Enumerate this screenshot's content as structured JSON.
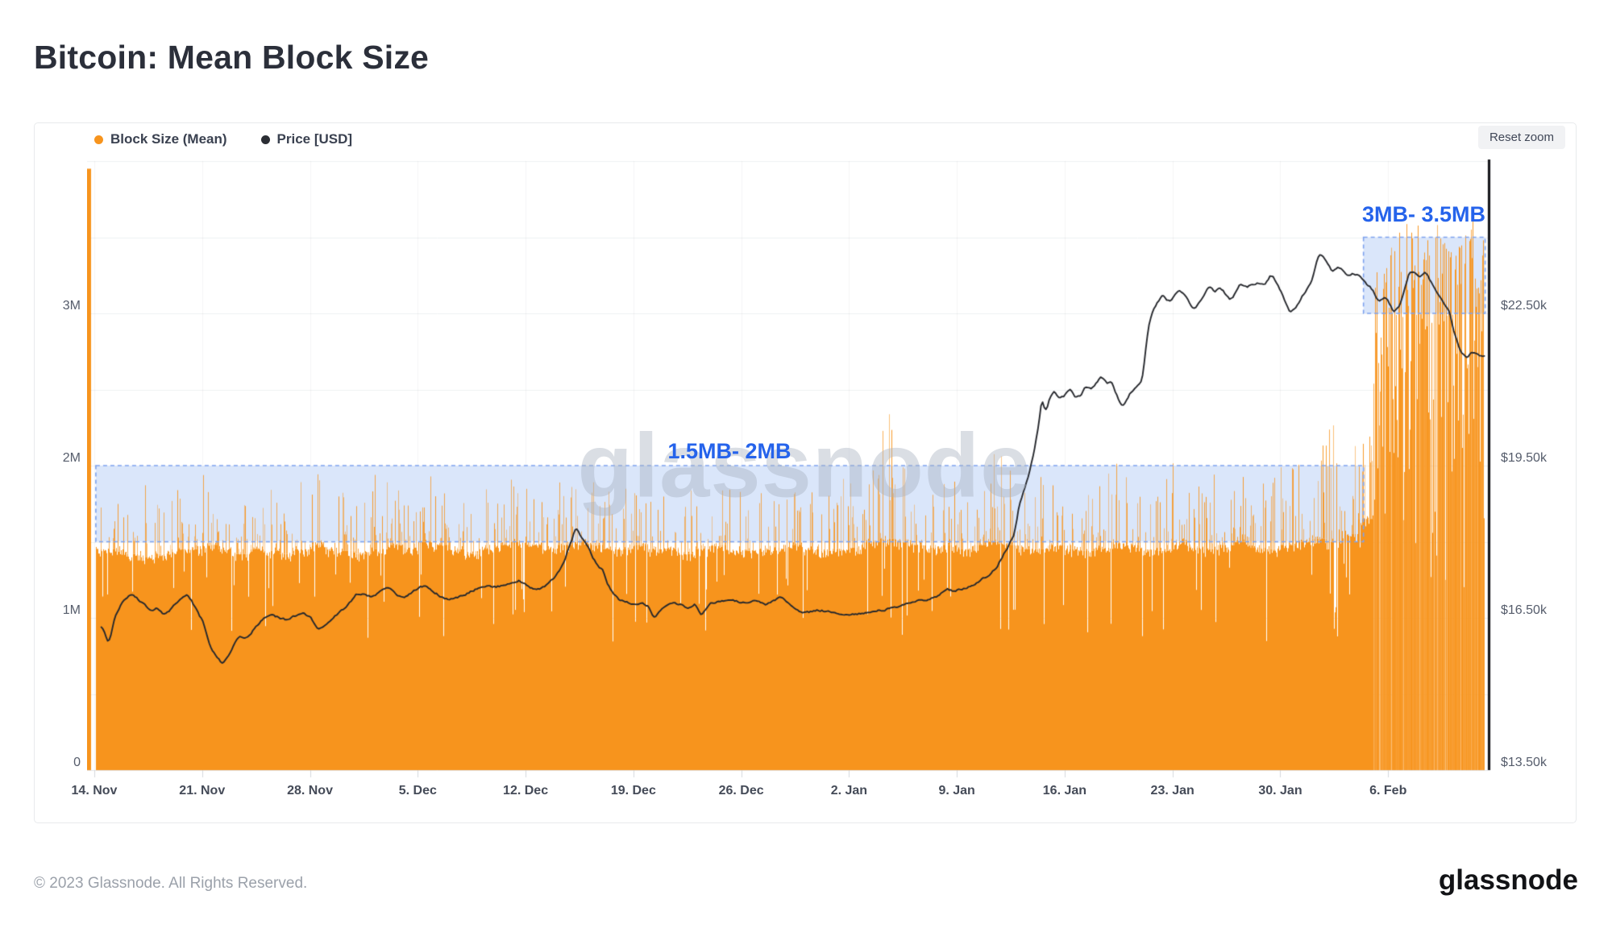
{
  "page": {
    "title": "Bitcoin: Mean Block Size"
  },
  "legend": {
    "items": [
      {
        "label": "Block Size (Mean)",
        "color": "#f7941d"
      },
      {
        "label": "Price [USD]",
        "color": "#2b2e34"
      }
    ]
  },
  "toolbar": {
    "reset_zoom_label": "Reset zoom"
  },
  "watermark": {
    "text": "glassnode"
  },
  "footer": {
    "copyright": "© 2023 Glassnode. All Rights Reserved.",
    "brand": "glassnode"
  },
  "chart_data": {
    "type": "mixed",
    "series_meta": [
      {
        "name": "Block Size (Mean)",
        "type": "bar",
        "axis": "left",
        "color": "#f7941d"
      },
      {
        "name": "Price [USD]",
        "type": "line",
        "axis": "right",
        "color": "#26282d"
      }
    ],
    "x_axis": {
      "tick_labels": [
        "14. Nov",
        "21. Nov",
        "28. Nov",
        "5. Dec",
        "12. Dec",
        "19. Dec",
        "26. Dec",
        "2. Jan",
        "9. Jan",
        "16. Jan",
        "23. Jan",
        "30. Jan",
        "6. Feb"
      ],
      "tick_days": [
        0,
        7,
        14,
        21,
        28,
        35,
        42,
        49,
        56,
        63,
        70,
        77,
        84
      ],
      "days_visible": [
        -0.45,
        90.3
      ]
    },
    "y_left": {
      "range": [
        0,
        4
      ],
      "gridline_step": 0.5,
      "ticks": [
        {
          "v": 0,
          "label": "0"
        },
        {
          "v": 1,
          "label": "1M"
        },
        {
          "v": 2,
          "label": "2M"
        },
        {
          "v": 3,
          "label": "3M"
        }
      ]
    },
    "y_right": {
      "range": [
        13.5,
        25.5
      ],
      "gridline_step": 1.5,
      "ticks": [
        {
          "v": 13.5,
          "label": "$13.50k"
        },
        {
          "v": 16.5,
          "label": "$16.50k"
        },
        {
          "v": 19.5,
          "label": "$19.50k"
        },
        {
          "v": 22.5,
          "label": "$22.50k"
        }
      ]
    },
    "annotations": [
      {
        "text": "1.5MB- 2MB",
        "band": {
          "from_day": 0.1,
          "to_day": 82.4,
          "from_mb": 1.5,
          "to_mb": 2.0
        }
      },
      {
        "text": "3MB- 3.5MB",
        "band": {
          "from_day": 82.4,
          "to_day": 90.3,
          "from_mb": 3.0,
          "to_mb": 3.5
        }
      }
    ],
    "price_usd_k": [
      [
        0.45,
        16.35
      ],
      [
        0.7,
        16.1
      ],
      [
        0.9,
        15.95
      ],
      [
        1.1,
        16.3
      ],
      [
        1.3,
        16.6
      ],
      [
        1.6,
        16.75
      ],
      [
        2,
        16.9
      ],
      [
        2.4,
        17
      ],
      [
        2.8,
        16.85
      ],
      [
        3.2,
        16.75
      ],
      [
        3.6,
        16.6
      ],
      [
        4,
        16.7
      ],
      [
        4.4,
        16.55
      ],
      [
        4.8,
        16.65
      ],
      [
        5.2,
        16.8
      ],
      [
        5.6,
        16.9
      ],
      [
        6,
        16.95
      ],
      [
        6.3,
        16.8
      ],
      [
        6.7,
        16.55
      ],
      [
        7,
        16.4
      ],
      [
        7.3,
        16.05
      ],
      [
        7.6,
        15.8
      ],
      [
        8,
        15.7
      ],
      [
        8.3,
        15.55
      ],
      [
        8.6,
        15.75
      ],
      [
        9,
        16
      ],
      [
        9.4,
        16.15
      ],
      [
        9.8,
        16.1
      ],
      [
        10.2,
        16.25
      ],
      [
        10.6,
        16.4
      ],
      [
        11,
        16.5
      ],
      [
        11.5,
        16.55
      ],
      [
        12,
        16.5
      ],
      [
        12.5,
        16.45
      ],
      [
        13,
        16.55
      ],
      [
        13.5,
        16.6
      ],
      [
        14,
        16.5
      ],
      [
        14.4,
        16.25
      ],
      [
        14.8,
        16.35
      ],
      [
        15.2,
        16.45
      ],
      [
        15.6,
        16.55
      ],
      [
        16,
        16.65
      ],
      [
        16.5,
        16.8
      ],
      [
        17,
        17
      ],
      [
        17.5,
        16.95
      ],
      [
        18,
        16.9
      ],
      [
        18.5,
        17.05
      ],
      [
        19,
        17.1
      ],
      [
        19.5,
        16.95
      ],
      [
        20,
        16.9
      ],
      [
        20.5,
        17
      ],
      [
        21,
        17.1
      ],
      [
        21.5,
        17.15
      ],
      [
        22,
        17
      ],
      [
        22.5,
        16.9
      ],
      [
        23,
        16.85
      ],
      [
        23.5,
        16.9
      ],
      [
        24,
        16.95
      ],
      [
        24.5,
        17.05
      ],
      [
        25,
        17.1
      ],
      [
        25.5,
        17.15
      ],
      [
        26,
        17.1
      ],
      [
        26.5,
        17.15
      ],
      [
        27,
        17.2
      ],
      [
        27.5,
        17.25
      ],
      [
        28,
        17.15
      ],
      [
        28.5,
        17.05
      ],
      [
        29,
        17.1
      ],
      [
        29.5,
        17.2
      ],
      [
        30,
        17.4
      ],
      [
        30.4,
        17.6
      ],
      [
        30.7,
        17.9
      ],
      [
        31,
        18.1
      ],
      [
        31.2,
        18.35
      ],
      [
        31.4,
        18.15
      ],
      [
        31.7,
        18
      ],
      [
        32,
        17.9
      ],
      [
        32.3,
        17.65
      ],
      [
        32.7,
        17.5
      ],
      [
        33,
        17.4
      ],
      [
        33.3,
        17.1
      ],
      [
        33.7,
        16.95
      ],
      [
        34,
        16.85
      ],
      [
        34.5,
        16.8
      ],
      [
        35,
        16.75
      ],
      [
        35.5,
        16.8
      ],
      [
        36,
        16.7
      ],
      [
        36.3,
        16.45
      ],
      [
        36.6,
        16.65
      ],
      [
        37,
        16.75
      ],
      [
        37.5,
        16.8
      ],
      [
        38,
        16.75
      ],
      [
        38.5,
        16.7
      ],
      [
        39,
        16.8
      ],
      [
        39.3,
        16.5
      ],
      [
        39.7,
        16.7
      ],
      [
        40,
        16.8
      ],
      [
        41,
        16.85
      ],
      [
        42,
        16.8
      ],
      [
        43,
        16.85
      ],
      [
        43.5,
        16.75
      ],
      [
        44,
        16.85
      ],
      [
        44.5,
        16.9
      ],
      [
        45,
        16.8
      ],
      [
        45.5,
        16.65
      ],
      [
        46,
        16.6
      ],
      [
        47,
        16.65
      ],
      [
        48,
        16.6
      ],
      [
        49,
        16.55
      ],
      [
        50,
        16.6
      ],
      [
        51,
        16.65
      ],
      [
        52,
        16.7
      ],
      [
        53,
        16.8
      ],
      [
        53.5,
        16.85
      ],
      [
        54,
        16.85
      ],
      [
        54.5,
        16.9
      ],
      [
        55,
        17
      ],
      [
        55.3,
        17.1
      ],
      [
        55.7,
        17
      ],
      [
        56,
        17.05
      ],
      [
        56.5,
        17.1
      ],
      [
        57,
        17.15
      ],
      [
        57.5,
        17.25
      ],
      [
        58,
        17.35
      ],
      [
        58.5,
        17.5
      ],
      [
        59,
        17.8
      ],
      [
        59.4,
        18
      ],
      [
        59.7,
        18.2
      ],
      [
        60,
        18.85
      ],
      [
        60.3,
        19.05
      ],
      [
        60.6,
        19.35
      ],
      [
        61,
        19.9
      ],
      [
        61.3,
        20.5
      ],
      [
        61.5,
        21
      ],
      [
        61.7,
        20.45
      ],
      [
        62,
        20.9
      ],
      [
        62.3,
        21
      ],
      [
        62.6,
        20.8
      ],
      [
        63,
        20.9
      ],
      [
        63.3,
        21.05
      ],
      [
        63.7,
        20.8
      ],
      [
        64,
        20.9
      ],
      [
        64.3,
        21.1
      ],
      [
        64.7,
        21
      ],
      [
        65,
        21.15
      ],
      [
        65.3,
        21.3
      ],
      [
        65.7,
        21.1
      ],
      [
        66,
        21.15
      ],
      [
        66.3,
        20.85
      ],
      [
        66.7,
        20.65
      ],
      [
        67,
        20.85
      ],
      [
        67.3,
        21
      ],
      [
        67.7,
        21.1
      ],
      [
        68,
        21.2
      ],
      [
        68.2,
        21.9
      ],
      [
        68.4,
        22.4
      ],
      [
        68.7,
        22.65
      ],
      [
        69,
        22.75
      ],
      [
        69.3,
        22.9
      ],
      [
        69.6,
        22.7
      ],
      [
        70,
        22.8
      ],
      [
        70.3,
        23
      ],
      [
        70.7,
        22.85
      ],
      [
        71,
        22.7
      ],
      [
        71.3,
        22.55
      ],
      [
        71.7,
        22.75
      ],
      [
        72,
        22.9
      ],
      [
        72.3,
        23.05
      ],
      [
        72.7,
        22.9
      ],
      [
        73,
        23.05
      ],
      [
        73.3,
        22.9
      ],
      [
        73.7,
        22.75
      ],
      [
        74,
        22.9
      ],
      [
        74.3,
        23.1
      ],
      [
        74.7,
        23
      ],
      [
        75,
        23.05
      ],
      [
        75.5,
        23.1
      ],
      [
        76,
        23.05
      ],
      [
        76.3,
        23.3
      ],
      [
        76.6,
        23.15
      ],
      [
        77,
        22.9
      ],
      [
        77.3,
        22.65
      ],
      [
        77.6,
        22.5
      ],
      [
        78,
        22.65
      ],
      [
        78.3,
        22.85
      ],
      [
        78.7,
        23
      ],
      [
        79,
        23.15
      ],
      [
        79.3,
        23.55
      ],
      [
        79.5,
        23.75
      ],
      [
        79.8,
        23.6
      ],
      [
        80,
        23.5
      ],
      [
        80.3,
        23.3
      ],
      [
        80.7,
        23.45
      ],
      [
        81,
        23.35
      ],
      [
        81.3,
        23.2
      ],
      [
        81.7,
        23.3
      ],
      [
        82,
        23.25
      ],
      [
        82.4,
        23.1
      ],
      [
        82.8,
        23
      ],
      [
        83,
        22.9
      ],
      [
        83.3,
        22.7
      ],
      [
        83.7,
        22.85
      ],
      [
        84,
        22.7
      ],
      [
        84.3,
        22.5
      ],
      [
        84.7,
        22.65
      ],
      [
        85,
        23
      ],
      [
        85.3,
        23.35
      ],
      [
        85.7,
        23.3
      ],
      [
        86,
        23.2
      ],
      [
        86.4,
        23.35
      ],
      [
        86.7,
        23.1
      ],
      [
        87,
        22.95
      ],
      [
        87.4,
        22.8
      ],
      [
        87.7,
        22.6
      ],
      [
        88,
        22.45
      ],
      [
        88.2,
        22.1
      ],
      [
        88.4,
        21.9
      ],
      [
        88.7,
        21.7
      ],
      [
        89,
        21.6
      ],
      [
        89.4,
        21.75
      ],
      [
        89.8,
        21.65
      ],
      [
        90,
        21.65
      ],
      [
        90.3,
        21.7
      ]
    ],
    "block_size_daily_envelope": {
      "note": "per-day (from 14 Nov) typical solid mass top and max spike, in MB",
      "first_bar_mb": 3.95,
      "mass": [
        1.45,
        1.45,
        1.42,
        1.4,
        1.42,
        1.45,
        1.45,
        1.48,
        1.45,
        1.42,
        1.45,
        1.44,
        1.42,
        1.45,
        1.48,
        1.45,
        1.44,
        1.42,
        1.45,
        1.48,
        1.46,
        1.5,
        1.48,
        1.45,
        1.42,
        1.45,
        1.48,
        1.5,
        1.48,
        1.45,
        1.48,
        1.5,
        1.48,
        1.45,
        1.45,
        1.48,
        1.45,
        1.45,
        1.42,
        1.45,
        1.48,
        1.45,
        1.44,
        1.45,
        1.46,
        1.48,
        1.45,
        1.44,
        1.45,
        1.46,
        1.5,
        1.52,
        1.5,
        1.48,
        1.46,
        1.48,
        1.45,
        1.48,
        1.5,
        1.48,
        1.45,
        1.45,
        1.48,
        1.45,
        1.44,
        1.46,
        1.5,
        1.48,
        1.45,
        1.44,
        1.5,
        1.46,
        1.45,
        1.48,
        1.5,
        1.46,
        1.45,
        1.48,
        1.5,
        1.52,
        1.5,
        1.55,
        1.65,
        2.6,
        2.9,
        3.0,
        2.9,
        2.95,
        3.0,
        2.9,
        2.95
      ],
      "peak": [
        1.85,
        1.8,
        1.85,
        1.9,
        1.8,
        1.85,
        1.95,
        2.0,
        1.9,
        1.8,
        1.95,
        1.85,
        1.8,
        1.9,
        2.0,
        1.85,
        1.9,
        1.8,
        1.95,
        1.9,
        1.95,
        2.05,
        1.95,
        1.85,
        1.8,
        1.9,
        1.95,
        2.0,
        1.9,
        1.85,
        1.9,
        1.95,
        1.9,
        1.85,
        1.9,
        1.95,
        1.85,
        1.8,
        1.85,
        1.9,
        1.95,
        1.85,
        1.8,
        1.9,
        1.95,
        1.9,
        1.85,
        1.9,
        1.95,
        1.9,
        2.0,
        2.4,
        2.0,
        1.9,
        1.95,
        1.9,
        1.95,
        2.0,
        2.08,
        1.98,
        1.9,
        1.95,
        1.9,
        1.85,
        1.9,
        1.95,
        2.2,
        2.15,
        1.9,
        1.95,
        2.22,
        1.9,
        1.95,
        2.15,
        1.95,
        1.9,
        1.95,
        2.0,
        2.1,
        2.3,
        2.3,
        2.5,
        2.6,
        3.3,
        3.45,
        3.6,
        3.4,
        3.5,
        3.45,
        3.55,
        3.4
      ]
    },
    "colors": {
      "bar": "#f7941d",
      "price_line": "#26282d",
      "band_fill": "rgba(214,227,249,0.9)",
      "band_border": "#7da2ee",
      "annotation_text": "#2563eb",
      "grid": "#eef0f2",
      "axis_line": "#17181c"
    },
    "render_seed": 20230214
  }
}
